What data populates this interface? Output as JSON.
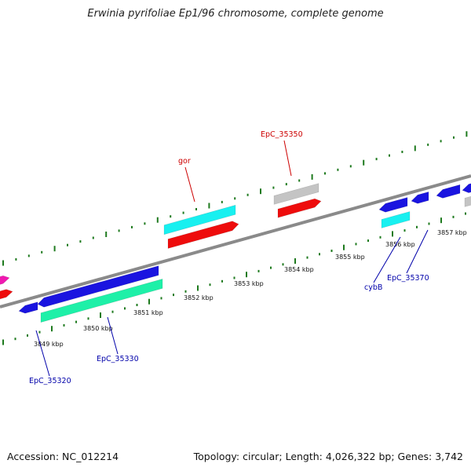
{
  "title": "Erwinia pyrifoliae Ep1/96 chromosome, complete genome",
  "accession_label": "Accession: NC_012214",
  "topology_label": "Topology: circular; Length: 4,026,322 bp; Genes: 3,742",
  "tick_labels": [
    "3849 kbp",
    "3850 kbp",
    "3851 kbp",
    "3852 kbp",
    "3853 kbp",
    "3854 kbp",
    "3855 kbp",
    "3856 kbp",
    "3857 kbp"
  ],
  "gene_labels": {
    "gor": "gor",
    "EpC_35350": "EpC_35350",
    "EpC_35320": "EpC_35320",
    "EpC_35330": "EpC_35330",
    "cybB": "cybB",
    "EpC_35370": "EpC_35370"
  },
  "colors": {
    "blue": "#1a14e0",
    "red": "#ee0c0c",
    "cyan": "#18f0f0",
    "aquamarine": "#1ef0a8",
    "gray": "#c4c4c4",
    "magenta": "#f018b0",
    "backbone": "#808080",
    "tick": "#1e7a1e",
    "label_red": "#cc0000",
    "label_blue": "#0000aa"
  }
}
